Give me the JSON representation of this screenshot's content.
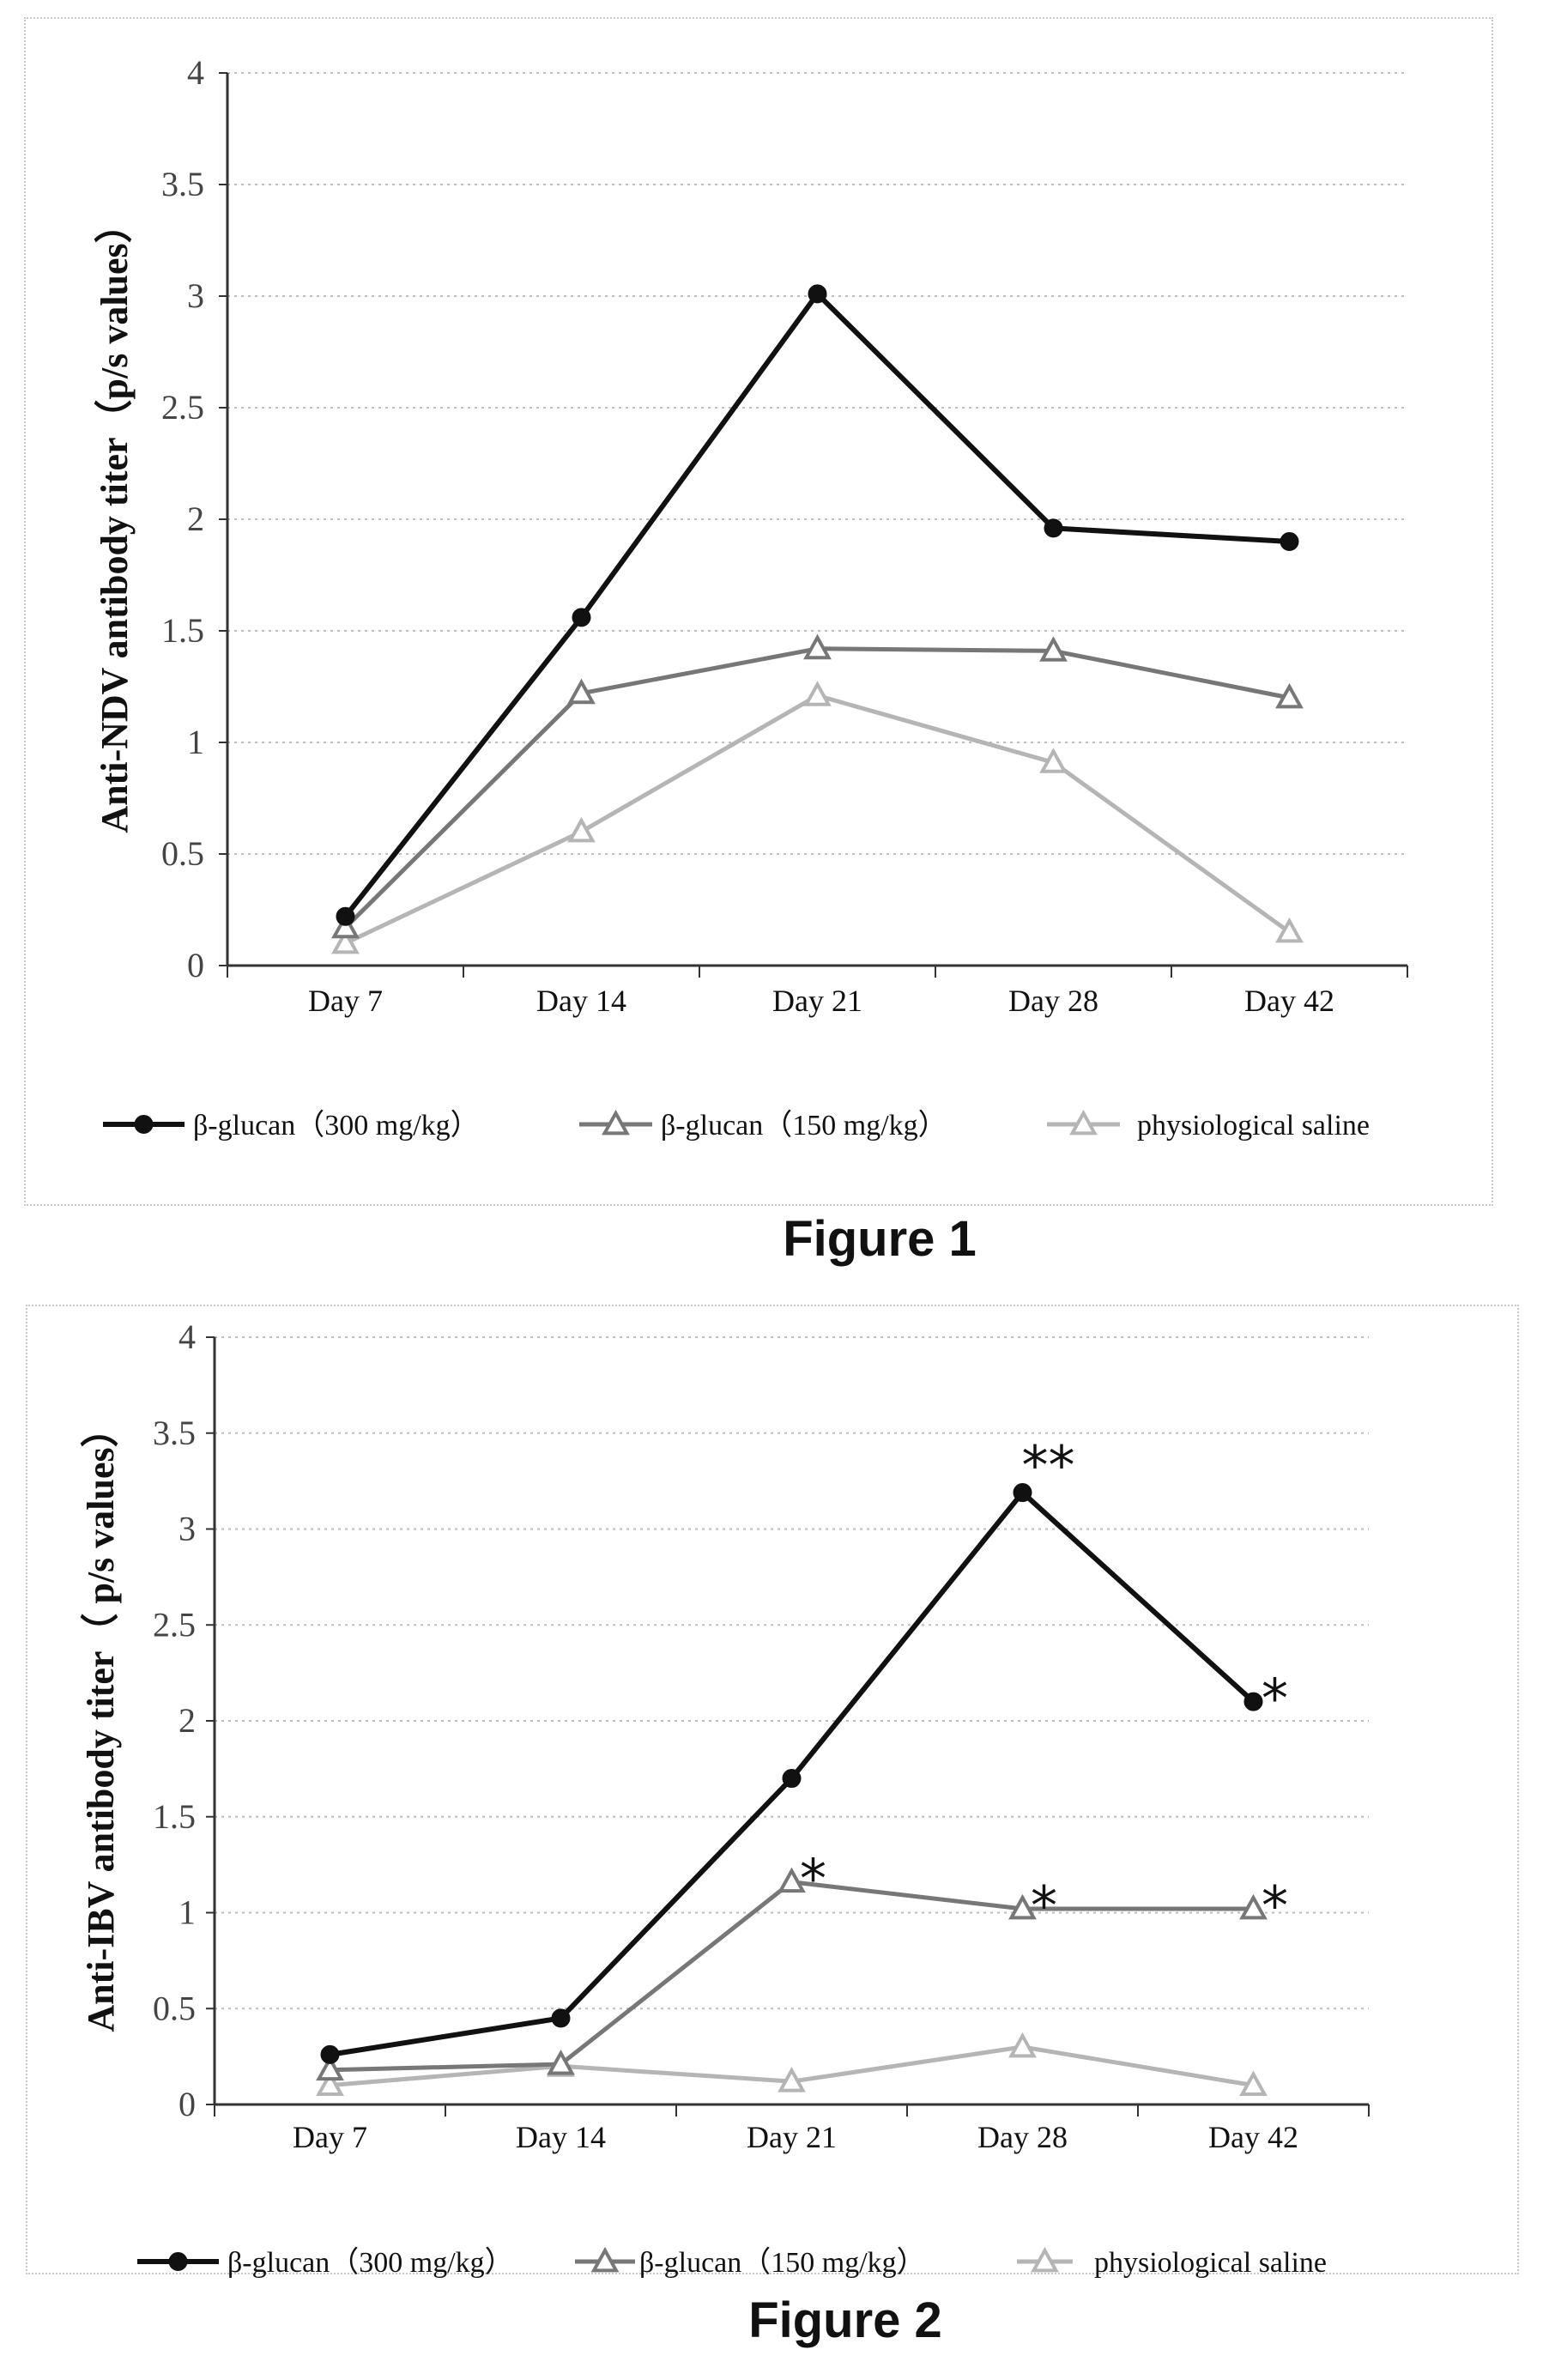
{
  "chart_data": [
    {
      "type": "line",
      "caption": "Figure 1",
      "ylabel": "Anti-NDV antibody titer（p/s values）",
      "xlabel": "",
      "categories": [
        "Day 7",
        "Day 14",
        "Day 21",
        "Day 28",
        "Day 42"
      ],
      "ylim": [
        0,
        4
      ],
      "yticks": [
        "0",
        "0.5",
        "1",
        "1.5",
        "2",
        "2.5",
        "3",
        "3.5",
        "4"
      ],
      "grid": true,
      "legend_position": "bottom",
      "series": [
        {
          "name": "β-glucan（300 mg/kg）",
          "values": [
            0.22,
            1.56,
            3.01,
            1.96,
            1.9
          ],
          "color": "#111111",
          "marker": "circle"
        },
        {
          "name": "β-glucan（150 mg/kg）",
          "values": [
            0.17,
            1.22,
            1.42,
            1.41,
            1.2
          ],
          "color": "#777777",
          "marker": "triangle"
        },
        {
          "name": "physiological saline",
          "values": [
            0.1,
            0.6,
            1.21,
            0.91,
            0.15
          ],
          "color": "#b5b5b5",
          "marker": "triangle"
        }
      ],
      "annotations": []
    },
    {
      "type": "line",
      "caption": "Figure 2",
      "ylabel": "Anti-IBV antibody titer（ p/s values）",
      "xlabel": "",
      "categories": [
        "Day 7",
        "Day 14",
        "Day 21",
        "Day 28",
        "Day 42"
      ],
      "ylim": [
        0,
        4
      ],
      "yticks": [
        "0",
        "0.5",
        "1",
        "1.5",
        "2",
        "2.5",
        "3",
        "3.5",
        "4"
      ],
      "grid": true,
      "legend_position": "bottom",
      "series": [
        {
          "name": "β-glucan（300 mg/kg）",
          "values": [
            0.26,
            0.45,
            1.7,
            3.19,
            2.1
          ],
          "color": "#111111",
          "marker": "circle"
        },
        {
          "name": "β-glucan（150 mg/kg）",
          "values": [
            0.18,
            0.21,
            1.16,
            1.02,
            1.02
          ],
          "color": "#777777",
          "marker": "triangle"
        },
        {
          "name": "physiological saline",
          "values": [
            0.1,
            0.2,
            0.12,
            0.3,
            0.1
          ],
          "color": "#b5b5b5",
          "marker": "triangle"
        }
      ],
      "annotations": [
        {
          "text": "**",
          "series": 0,
          "index": 3
        },
        {
          "text": "*",
          "series": 0,
          "index": 4
        },
        {
          "text": "*",
          "series": 1,
          "index": 2
        },
        {
          "text": "*",
          "series": 1,
          "index": 3
        },
        {
          "text": "*",
          "series": 1,
          "index": 4
        }
      ]
    }
  ]
}
